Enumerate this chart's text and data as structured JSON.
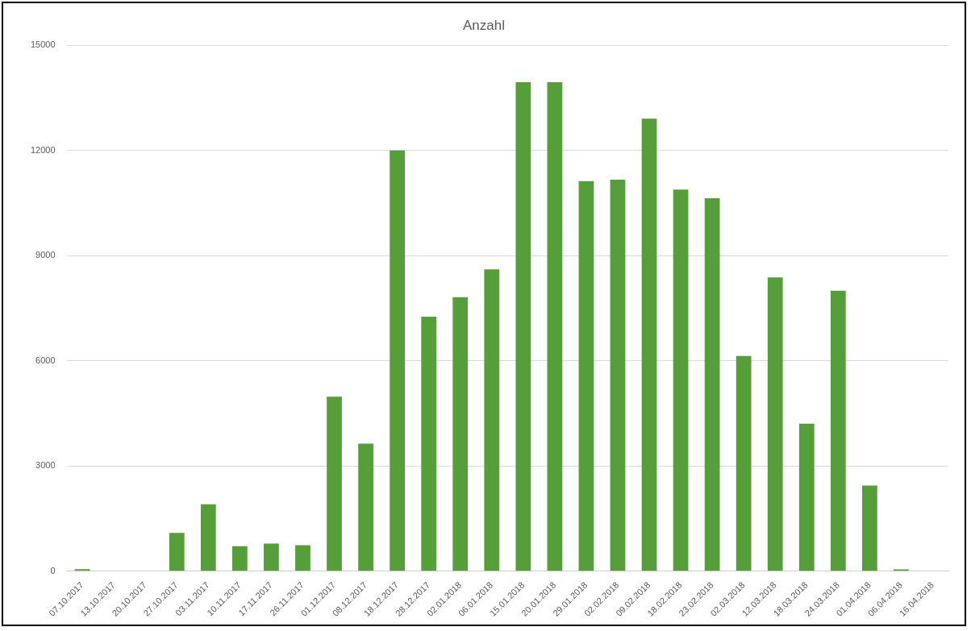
{
  "chart_data": {
    "type": "bar",
    "title": "Anzahl",
    "categories": [
      "07.10.2017",
      "13.10.2017",
      "20.10.2017",
      "27.10.2017",
      "03.11.2017",
      "10.11.2017",
      "17.11.2017",
      "26.11.2017",
      "01.12.2017",
      "08.12.2017",
      "18.12.2017",
      "28.12.2017",
      "02.01.2018",
      "06.01.2018",
      "15.01.2018",
      "20.01.2018",
      "29.01.2018",
      "02.02.2018",
      "09.02.2018",
      "18.02.2018",
      "23.02.2018",
      "02.03.2018",
      "12.03.2018",
      "18.03.2018",
      "24.03.2018",
      "01.04.2018",
      "06.04.2018",
      "16.04.2018"
    ],
    "values": [
      60,
      0,
      0,
      1090,
      1910,
      710,
      790,
      740,
      4980,
      3640,
      12000,
      7260,
      7820,
      8610,
      13950,
      13950,
      11130,
      11170,
      12910,
      10890,
      10640,
      6140,
      8380,
      4210,
      8000,
      2440,
      50,
      0
    ],
    "color": "#559e3a",
    "ylim": [
      0,
      15000
    ],
    "yticks": [
      0,
      3000,
      6000,
      9000,
      12000,
      15000
    ],
    "grid": "y",
    "legend": false
  }
}
